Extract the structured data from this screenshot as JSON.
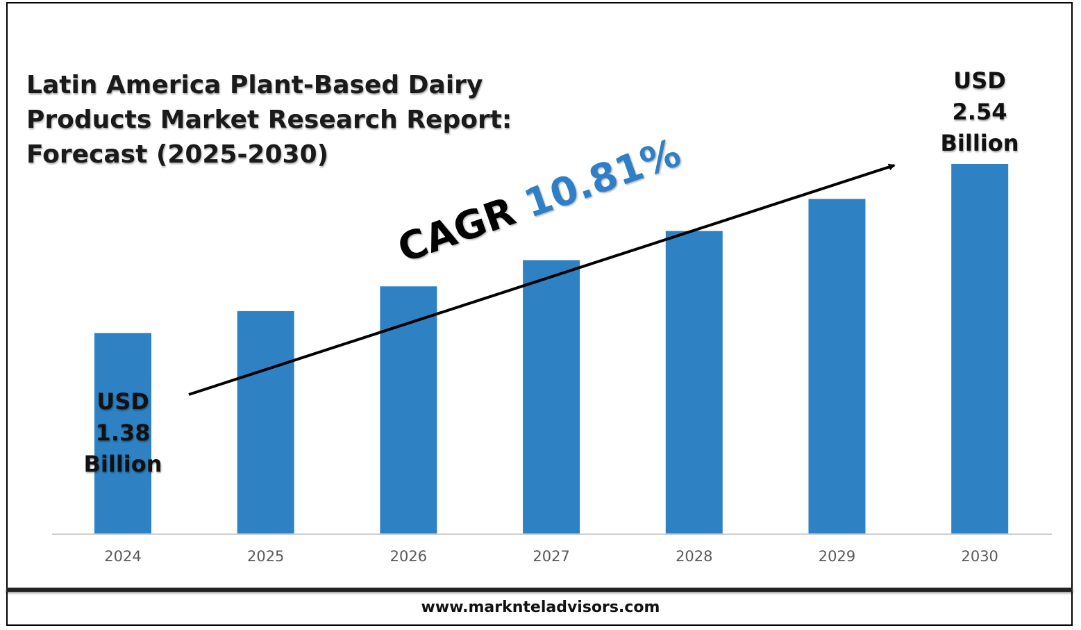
{
  "chart_data": {
    "type": "bar",
    "title": "Latin America Plant-Based Dairy Products Market Research Report: Forecast (2025-2030)",
    "categories": [
      "2024",
      "2025",
      "2026",
      "2027",
      "2028",
      "2029",
      "2030"
    ],
    "values": [
      1.38,
      1.53,
      1.7,
      1.88,
      2.08,
      2.3,
      2.54
    ],
    "unit": "USD Billion",
    "ylim": [
      0,
      2.54
    ],
    "grid": false,
    "bar_color": "#2e82c4",
    "annotations": {
      "start": [
        "USD",
        "1.38",
        "Billion"
      ],
      "end": [
        "USD",
        "2.54",
        "Billion"
      ],
      "cagr_label": "CAGR",
      "cagr_value": "10.81%"
    }
  },
  "colors": {
    "bar": "#2e82c4",
    "accent": "#2e7fc6",
    "tick": "#595959"
  },
  "footer": {
    "url": "www.marknteladvisors.com"
  }
}
